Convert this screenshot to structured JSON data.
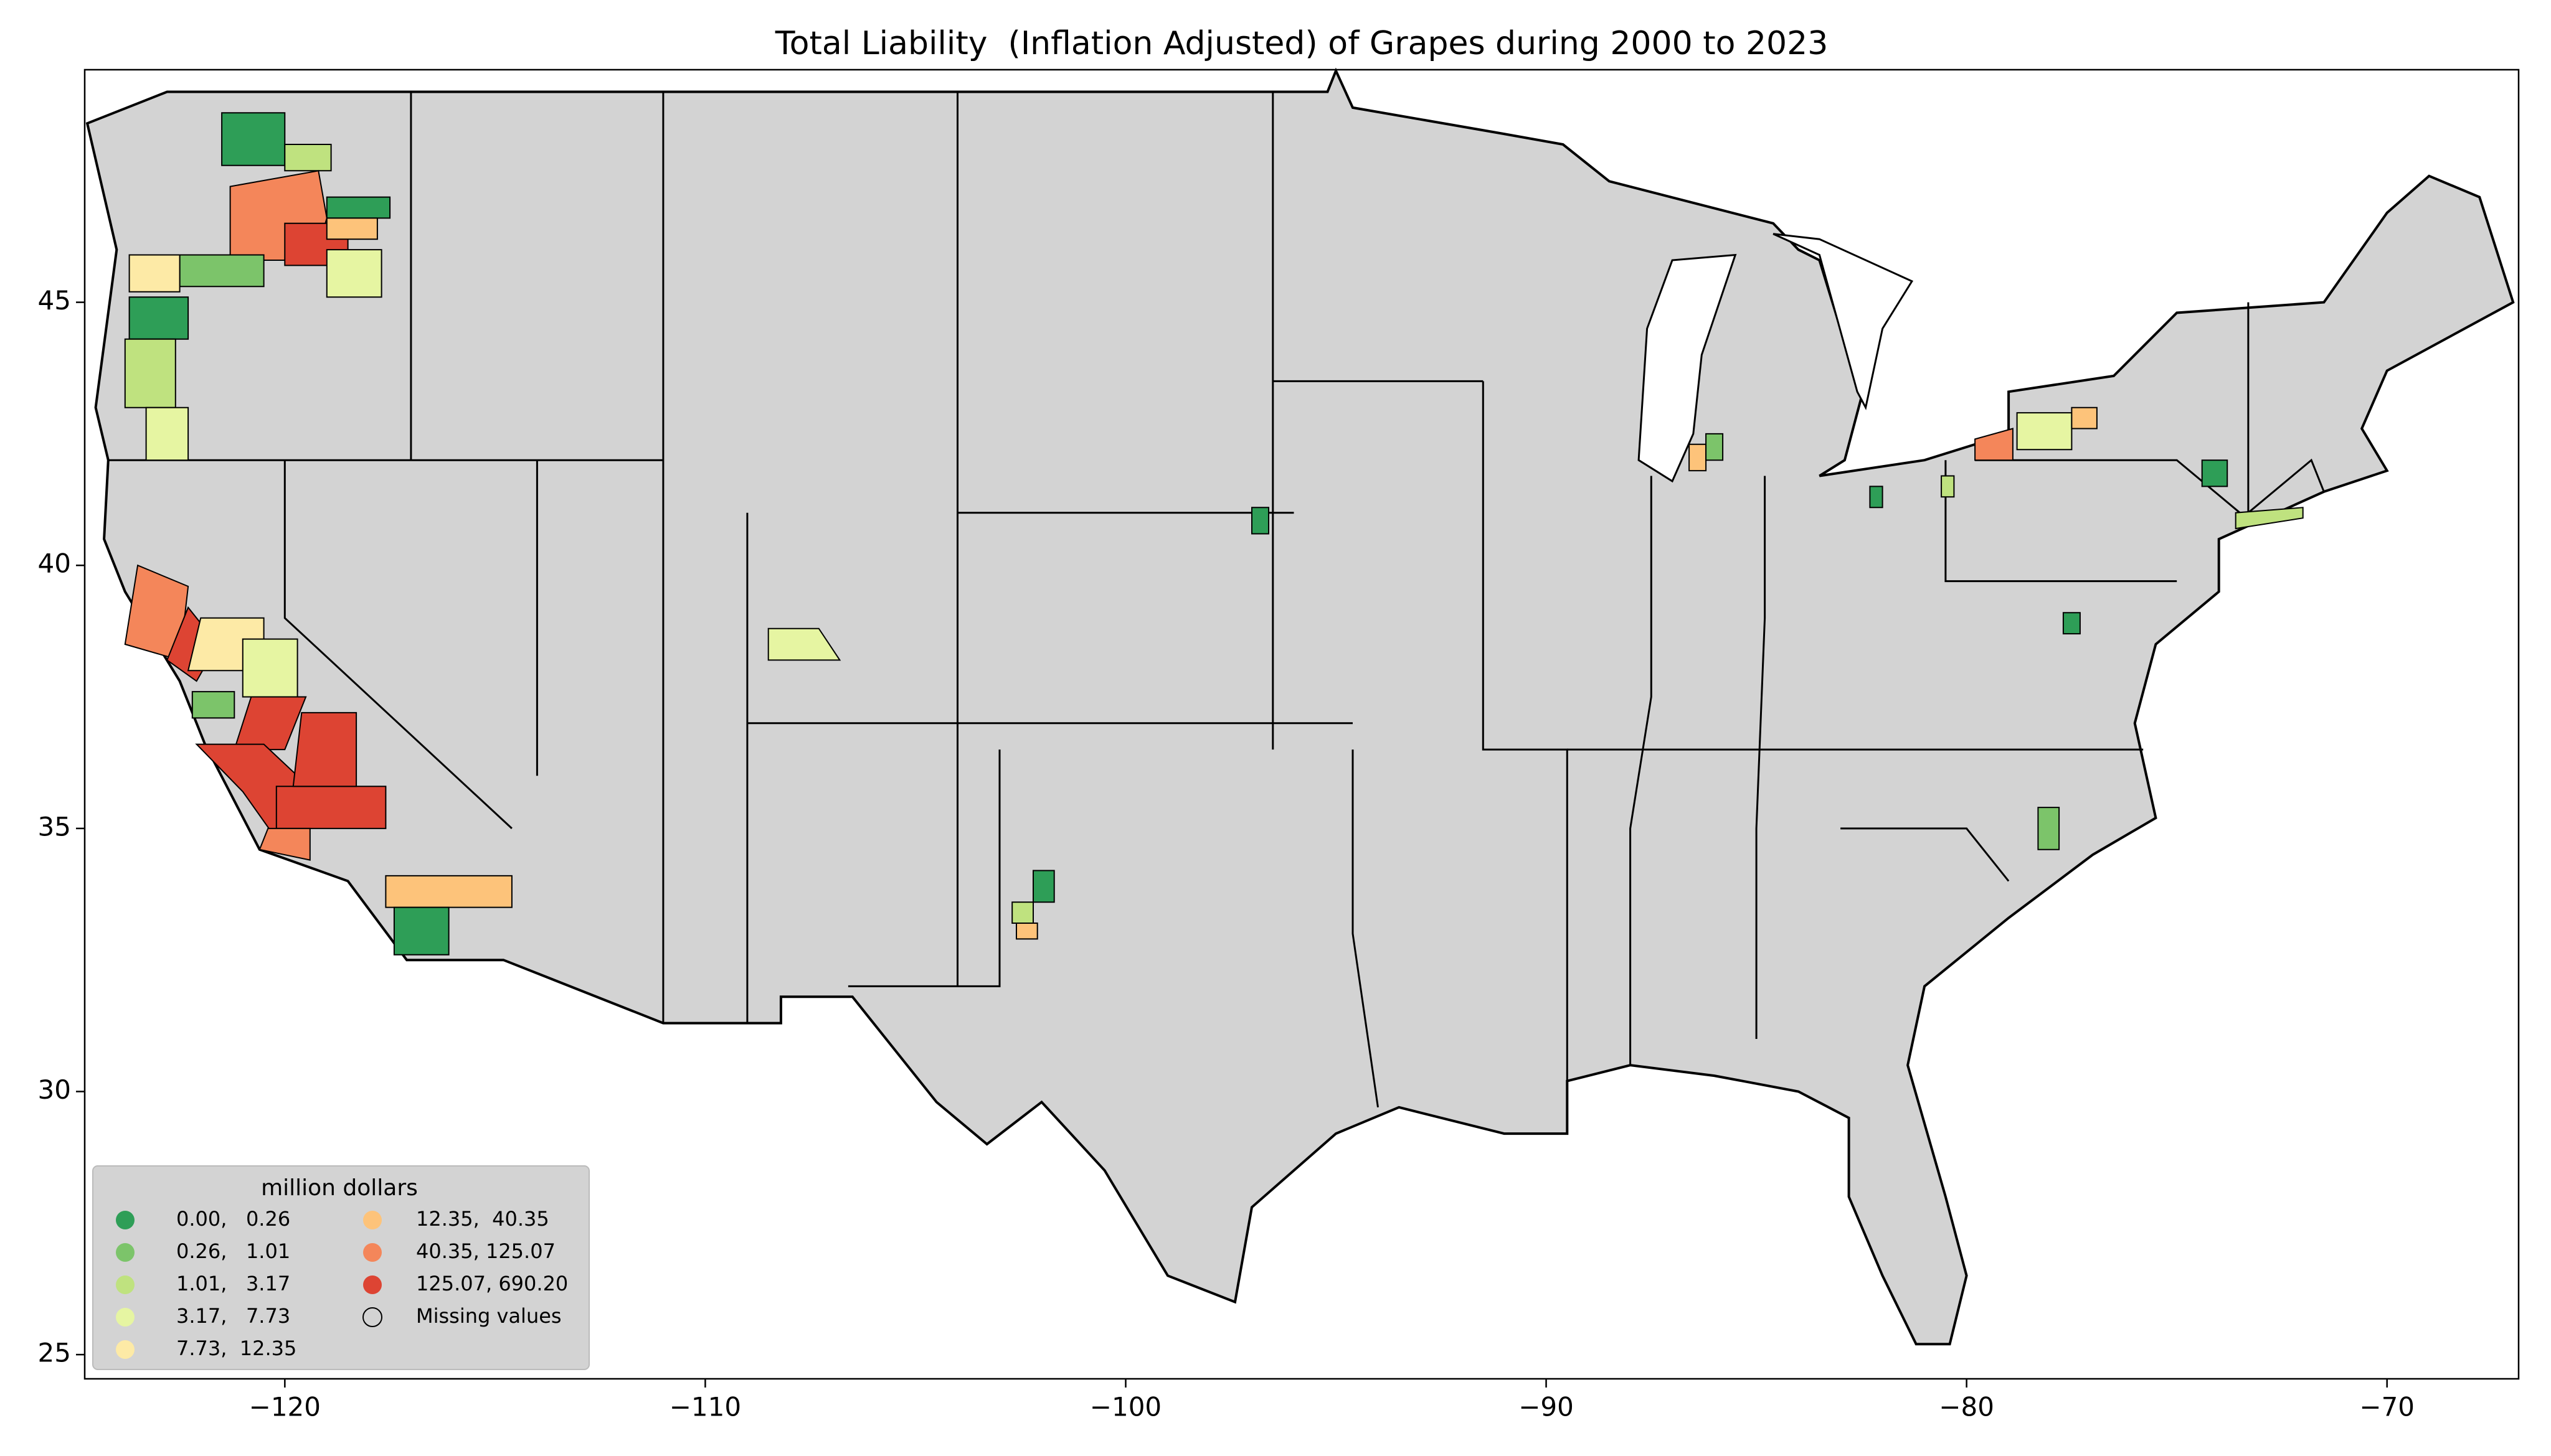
{
  "chart_data": {
    "type": "choropleth",
    "title": "Total Liability  (Inflation Adjusted) of Grapes during 2000 to 2023",
    "xlim": [
      -124.76,
      -66.87
    ],
    "ylim": [
      24.54,
      49.42
    ],
    "xticks": [
      {
        "value": -120,
        "label": "−120"
      },
      {
        "value": -110,
        "label": "−110"
      },
      {
        "value": -100,
        "label": "−100"
      },
      {
        "value": -90,
        "label": "−90"
      },
      {
        "value": -80,
        "label": "−80"
      },
      {
        "value": -70,
        "label": "−70"
      }
    ],
    "yticks": [
      25,
      30,
      35,
      40,
      45
    ],
    "legend": {
      "title": "million dollars",
      "position": "lower left",
      "entries": [
        {
          "label": "0.00,   0.26",
          "color": "#2e9e57"
        },
        {
          "label": "0.26,   1.01",
          "color": "#7cc46a"
        },
        {
          "label": "1.01,   3.17",
          "color": "#bfe27f"
        },
        {
          "label": "3.17,   7.73",
          "color": "#e6f5a2"
        },
        {
          "label": "7.73,  12.35",
          "color": "#fdeaa6"
        },
        {
          "label": "12.35,  40.35",
          "color": "#fdc37a"
        },
        {
          "label": "40.35, 125.07",
          "color": "#f4865a"
        },
        {
          "label": "125.07, 690.20",
          "color": "#dd4433"
        },
        {
          "label": "Missing values",
          "color": "#ffffff"
        }
      ]
    }
  }
}
